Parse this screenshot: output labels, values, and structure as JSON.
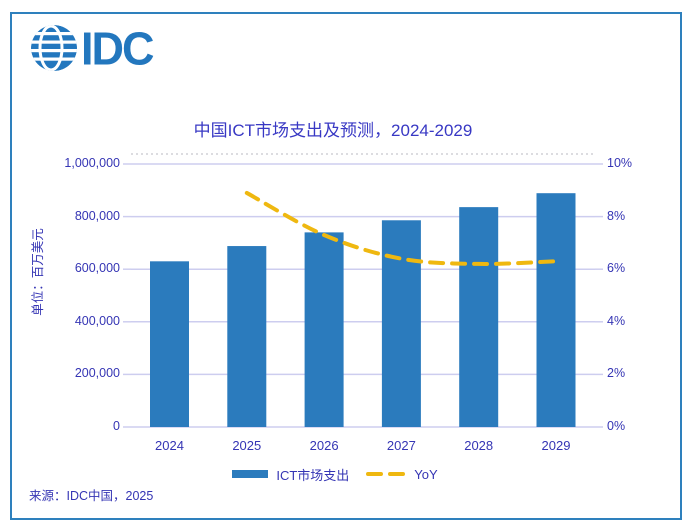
{
  "logo": {
    "text": "IDC",
    "color": "#2377BE"
  },
  "chart_data": {
    "type": "bar",
    "title": "中国ICT市场支出及预测，2024-2029",
    "categories": [
      "2024",
      "2025",
      "2026",
      "2027",
      "2028",
      "2029"
    ],
    "series": [
      {
        "name": "ICT市场支出",
        "type": "bar",
        "axis": "left",
        "values": [
          630000,
          688000,
          740000,
          786000,
          836000,
          889000
        ],
        "color": "#2B7BBD"
      },
      {
        "name": "YoY",
        "type": "line",
        "axis": "right",
        "dashed": true,
        "values": [
          null,
          8.9,
          7.3,
          6.4,
          6.2,
          6.3
        ],
        "unit": "%",
        "color": "#EFB810"
      }
    ],
    "left_axis": {
      "label": "单位：百万美元",
      "min": 0,
      "max": 1000000,
      "ticks": [
        "1,000,000",
        "800,000",
        "600,000",
        "400,000",
        "200,000",
        "0"
      ]
    },
    "right_axis": {
      "min": 0,
      "max": 10,
      "ticks": [
        "10%",
        "8%",
        "6%",
        "4%",
        "2%",
        "0%"
      ]
    },
    "grid": true,
    "legend_position": "bottom"
  },
  "source": "来源：IDC中国，2025",
  "colors": {
    "grid": "#CDCDEF",
    "text": "#3535B4",
    "title": "#3838C4",
    "frame_border": "#2E80BD",
    "bar": "#2B7BBD",
    "yoy_line": "#EFB810"
  }
}
